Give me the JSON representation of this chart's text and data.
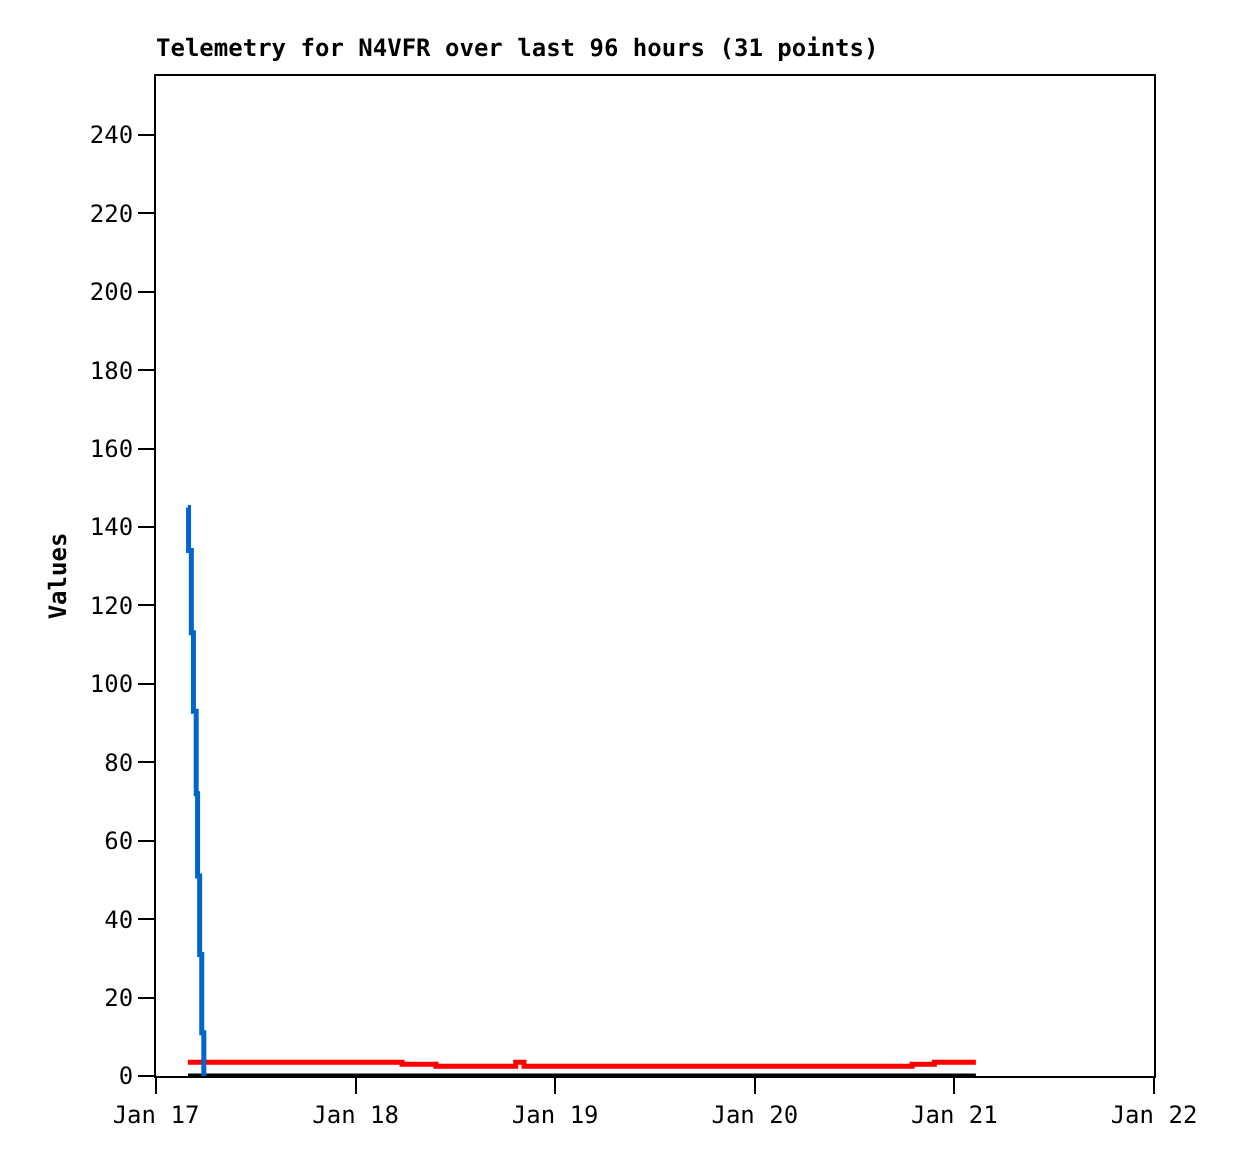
{
  "chart_data": {
    "type": "step",
    "title": "Telemetry for N4VFR over last 96 hours (31 points)",
    "ylabel": "Values",
    "xlim": [
      "--01-17",
      "--01-22"
    ],
    "xticks": [
      {
        "value": "--01-17",
        "label": "Jan 17"
      },
      {
        "value": "--01-18",
        "label": "Jan 18"
      },
      {
        "value": "--01-19",
        "label": "Jan 19"
      },
      {
        "value": "--01-20",
        "label": "Jan 20"
      },
      {
        "value": "--01-21",
        "label": "Jan 21"
      },
      {
        "value": "--01-22",
        "label": "Jan 22"
      }
    ],
    "ylim": [
      0,
      255
    ],
    "yticks": [
      0,
      20,
      40,
      60,
      80,
      100,
      120,
      140,
      160,
      180,
      200,
      220,
      240
    ],
    "grid": false,
    "line_style": "solid",
    "marker": "none",
    "series": [
      {
        "color": "#000000",
        "x": [
          "--01-17T03:50",
          "--01-21T02:35"
        ],
        "values": [
          0,
          0
        ]
      },
      {
        "color": "#ff0000",
        "x": [
          "--01-17T03:50",
          "--01-18T05:35",
          "--01-18T09:40",
          "--01-18T19:15",
          "--01-18T20:15",
          "--01-20T18:55",
          "--01-20T21:35",
          "--01-21T02:35"
        ],
        "values": [
          3.5,
          3,
          2.5,
          3.5,
          2.5,
          3,
          3.5,
          3.5
        ]
      },
      {
        "color": "#0066cc",
        "x": [
          "--01-17T03:50",
          "--01-17T03:55",
          "--01-17T04:15",
          "--01-17T04:30",
          "--01-17T04:50",
          "--01-17T05:00",
          "--01-17T05:15",
          "--01-17T05:30",
          "--01-17T05:45"
        ],
        "values": [
          145,
          134,
          113,
          93,
          72,
          51,
          31,
          11,
          0
        ]
      }
    ]
  }
}
